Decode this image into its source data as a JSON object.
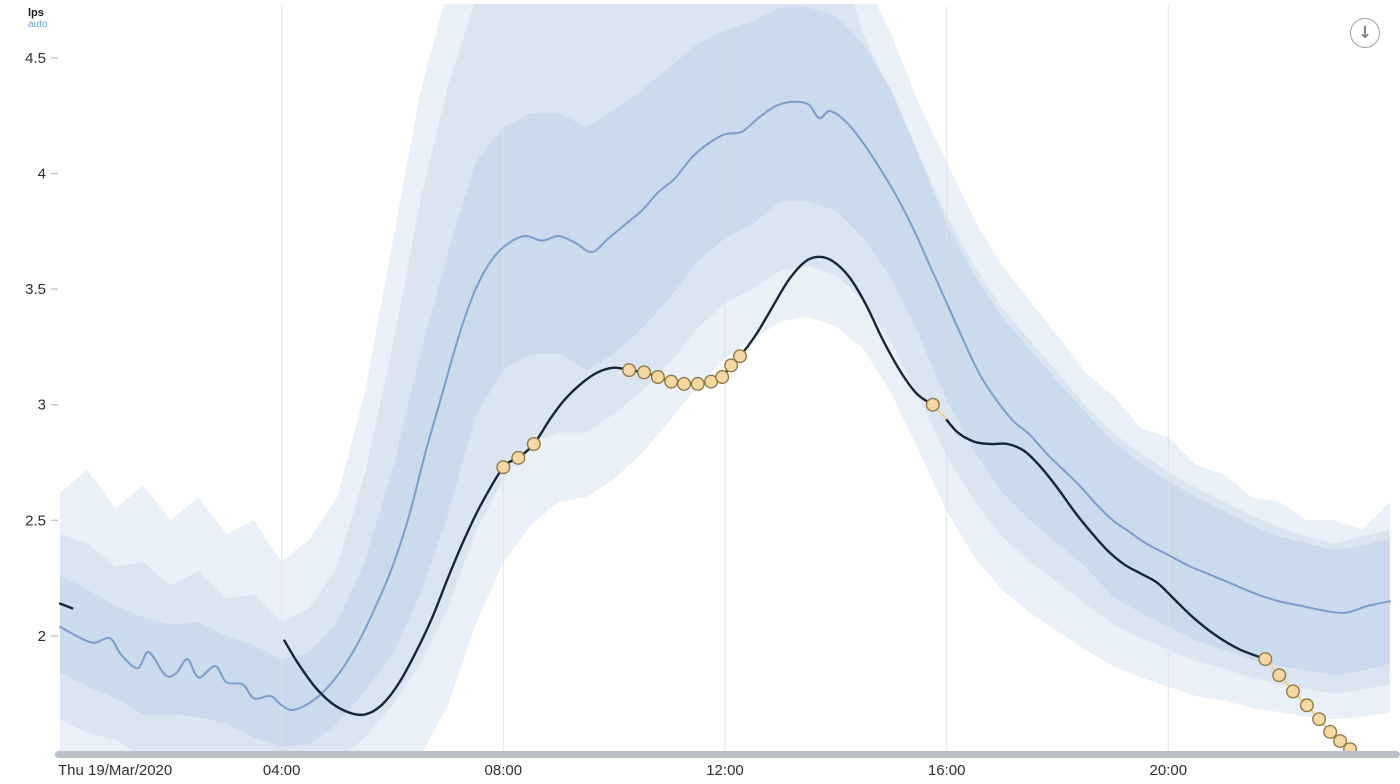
{
  "header": {
    "unit_label": "lps",
    "axis_mode": "auto"
  },
  "toolbar": {
    "download_icon": "arrow-down-circle",
    "download_glyph": "↓"
  },
  "colors": {
    "background": "#ffffff",
    "band_outer": "#eaf0f8",
    "band_mid": "#dbe5f1",
    "band_inner": "#cbdaec",
    "expected_line": "#7d9dca",
    "actual_line": "#16263a",
    "anomaly_fill": "#f6d9a2",
    "anomaly_stroke": "#8f7a45",
    "anomaly_connector": "#e9d6a0",
    "gridline": "#dde1e7",
    "axis_text": "#2b2f33",
    "tick_mark": "#c3c7cc",
    "scrollbar": "#b9c0c8"
  },
  "chart_data": {
    "type": "line",
    "title": "",
    "xlabel": "",
    "ylabel": "lps",
    "grid": "vertical-only",
    "legend": "none",
    "x_axis": {
      "domain": [
        0,
        24
      ],
      "ticks": [
        {
          "h": 0,
          "label": "Thu 19/Mar/2020",
          "align": "start",
          "grid": false
        },
        {
          "h": 4,
          "label": "04:00",
          "align": "middle",
          "grid": true
        },
        {
          "h": 8,
          "label": "08:00",
          "align": "middle",
          "grid": true
        },
        {
          "h": 12,
          "label": "12:00",
          "align": "middle",
          "grid": true
        },
        {
          "h": 16,
          "label": "16:00",
          "align": "middle",
          "grid": true
        },
        {
          "h": 20,
          "label": "20:00",
          "align": "middle",
          "grid": true
        }
      ]
    },
    "y_axis": {
      "unit": "lps",
      "mode": "auto",
      "domain": [
        1.485,
        4.716
      ],
      "ticks": [
        {
          "v": 4.5,
          "label": "4.5"
        },
        {
          "v": 4,
          "label": "4"
        },
        {
          "v": 3.5,
          "label": "3.5"
        },
        {
          "v": 3,
          "label": "3"
        },
        {
          "v": 2.5,
          "label": "2.5"
        },
        {
          "v": 2,
          "label": "2"
        }
      ]
    },
    "bands": {
      "x_start": 0,
      "x_step": 0.5,
      "layers": [
        {
          "name": "confidence-band-outer",
          "color": "#eaf0f8",
          "upper": [
            2.62,
            2.72,
            2.55,
            2.65,
            2.5,
            2.6,
            2.44,
            2.5,
            2.32,
            2.42,
            2.6,
            3.05,
            3.7,
            4.35,
            4.8,
            5.0,
            5.0,
            5.0,
            5.0,
            5.0,
            5.0,
            5.0,
            5.0,
            5.0,
            5.0,
            5.0,
            5.0,
            5.0,
            5.0,
            4.85,
            4.6,
            4.3,
            4.05,
            3.8,
            3.6,
            3.45,
            3.3,
            3.14,
            3.04,
            2.9,
            2.86,
            2.74,
            2.7,
            2.6,
            2.58,
            2.5,
            2.5,
            2.46,
            2.58
          ],
          "lower": [
            1.44,
            1.36,
            1.42,
            1.33,
            1.4,
            1.34,
            1.36,
            1.3,
            1.33,
            1.3,
            1.33,
            1.36,
            1.4,
            1.48,
            1.7,
            2.05,
            2.32,
            2.48,
            2.58,
            2.6,
            2.68,
            2.79,
            2.93,
            3.08,
            3.2,
            3.28,
            3.36,
            3.38,
            3.34,
            3.24,
            3.05,
            2.8,
            2.54,
            2.34,
            2.2,
            2.1,
            2.02,
            1.94,
            1.87,
            1.82,
            1.78,
            1.74,
            1.72,
            1.69,
            1.67,
            1.65,
            1.64,
            1.65,
            1.67
          ]
        },
        {
          "name": "confidence-band-mid",
          "color": "#dbe5f1",
          "upper": [
            2.44,
            2.4,
            2.3,
            2.32,
            2.22,
            2.28,
            2.16,
            2.18,
            2.06,
            2.12,
            2.3,
            2.7,
            3.25,
            3.88,
            4.38,
            4.75,
            4.9,
            4.95,
            4.95,
            4.9,
            4.95,
            5.0,
            5.0,
            5.0,
            5.0,
            5.0,
            5.0,
            5.0,
            5.0,
            4.6,
            4.35,
            4.08,
            3.82,
            3.6,
            3.42,
            3.28,
            3.14,
            3.0,
            2.88,
            2.79,
            2.71,
            2.64,
            2.58,
            2.52,
            2.47,
            2.43,
            2.4,
            2.43,
            2.46
          ],
          "lower": [
            1.64,
            1.58,
            1.55,
            1.48,
            1.5,
            1.46,
            1.46,
            1.4,
            1.4,
            1.39,
            1.46,
            1.56,
            1.7,
            1.88,
            2.12,
            2.45,
            2.68,
            2.83,
            2.88,
            2.88,
            2.96,
            3.06,
            3.18,
            3.33,
            3.44,
            3.5,
            3.58,
            3.6,
            3.56,
            3.45,
            3.27,
            3.03,
            2.78,
            2.58,
            2.43,
            2.32,
            2.23,
            2.14,
            2.05,
            1.99,
            1.94,
            1.89,
            1.86,
            1.82,
            1.79,
            1.77,
            1.75,
            1.77,
            1.79
          ]
        },
        {
          "name": "confidence-band-inner",
          "color": "#cbdaec",
          "upper": [
            2.26,
            2.2,
            2.13,
            2.08,
            2.05,
            2.06,
            2.0,
            1.96,
            1.9,
            1.93,
            2.06,
            2.32,
            2.72,
            3.22,
            3.66,
            4.05,
            4.2,
            4.26,
            4.26,
            4.2,
            4.28,
            4.36,
            4.46,
            4.56,
            4.62,
            4.66,
            4.72,
            4.72,
            4.68,
            4.56,
            4.36,
            4.08,
            3.78,
            3.56,
            3.38,
            3.24,
            3.1,
            2.97,
            2.84,
            2.75,
            2.67,
            2.6,
            2.54,
            2.48,
            2.43,
            2.4,
            2.37,
            2.39,
            2.42
          ],
          "lower": [
            1.84,
            1.78,
            1.73,
            1.66,
            1.66,
            1.65,
            1.62,
            1.56,
            1.52,
            1.53,
            1.62,
            1.76,
            1.92,
            2.18,
            2.52,
            2.95,
            3.15,
            3.22,
            3.22,
            3.15,
            3.22,
            3.33,
            3.46,
            3.62,
            3.72,
            3.78,
            3.88,
            3.88,
            3.84,
            3.72,
            3.55,
            3.3,
            3.02,
            2.8,
            2.62,
            2.5,
            2.4,
            2.3,
            2.17,
            2.1,
            2.04,
            1.98,
            1.94,
            1.9,
            1.87,
            1.85,
            1.83,
            1.85,
            1.88
          ]
        }
      ]
    },
    "series": [
      {
        "name": "expected",
        "type": "line",
        "color": "#7d9dca",
        "points": [
          [
            0,
            2.04
          ],
          [
            0.3,
            2.0
          ],
          [
            0.6,
            1.97
          ],
          [
            0.9,
            1.99
          ],
          [
            1.1,
            1.92
          ],
          [
            1.4,
            1.86
          ],
          [
            1.6,
            1.93
          ],
          [
            1.9,
            1.83
          ],
          [
            2.1,
            1.84
          ],
          [
            2.3,
            1.9
          ],
          [
            2.5,
            1.82
          ],
          [
            2.8,
            1.87
          ],
          [
            3.0,
            1.8
          ],
          [
            3.3,
            1.79
          ],
          [
            3.5,
            1.73
          ],
          [
            3.8,
            1.74
          ],
          [
            4.0,
            1.7
          ],
          [
            4.2,
            1.68
          ],
          [
            4.5,
            1.71
          ],
          [
            4.8,
            1.77
          ],
          [
            5.1,
            1.86
          ],
          [
            5.4,
            1.98
          ],
          [
            5.7,
            2.13
          ],
          [
            6.0,
            2.3
          ],
          [
            6.3,
            2.52
          ],
          [
            6.6,
            2.8
          ],
          [
            6.9,
            3.05
          ],
          [
            7.2,
            3.3
          ],
          [
            7.5,
            3.5
          ],
          [
            7.8,
            3.63
          ],
          [
            8.1,
            3.7
          ],
          [
            8.4,
            3.73
          ],
          [
            8.7,
            3.71
          ],
          [
            9.0,
            3.73
          ],
          [
            9.3,
            3.7
          ],
          [
            9.6,
            3.66
          ],
          [
            9.9,
            3.72
          ],
          [
            10.2,
            3.78
          ],
          [
            10.5,
            3.84
          ],
          [
            10.8,
            3.92
          ],
          [
            11.1,
            3.98
          ],
          [
            11.4,
            4.07
          ],
          [
            11.7,
            4.13
          ],
          [
            12.0,
            4.17
          ],
          [
            12.3,
            4.18
          ],
          [
            12.6,
            4.24
          ],
          [
            12.9,
            4.29
          ],
          [
            13.2,
            4.31
          ],
          [
            13.5,
            4.3
          ],
          [
            13.7,
            4.24
          ],
          [
            13.9,
            4.27
          ],
          [
            14.2,
            4.22
          ],
          [
            14.5,
            4.13
          ],
          [
            14.8,
            4.02
          ],
          [
            15.1,
            3.9
          ],
          [
            15.4,
            3.76
          ],
          [
            15.7,
            3.6
          ],
          [
            16.0,
            3.44
          ],
          [
            16.3,
            3.28
          ],
          [
            16.6,
            3.13
          ],
          [
            16.9,
            3.02
          ],
          [
            17.2,
            2.93
          ],
          [
            17.5,
            2.87
          ],
          [
            17.8,
            2.79
          ],
          [
            18.1,
            2.72
          ],
          [
            18.4,
            2.65
          ],
          [
            18.7,
            2.57
          ],
          [
            19.0,
            2.5
          ],
          [
            19.3,
            2.45
          ],
          [
            19.6,
            2.4
          ],
          [
            20.0,
            2.35
          ],
          [
            20.4,
            2.3
          ],
          [
            20.8,
            2.26
          ],
          [
            21.2,
            2.22
          ],
          [
            21.6,
            2.18
          ],
          [
            22.0,
            2.15
          ],
          [
            22.4,
            2.13
          ],
          [
            22.8,
            2.11
          ],
          [
            23.2,
            2.1
          ],
          [
            23.6,
            2.13
          ],
          [
            24.0,
            2.15
          ]
        ]
      },
      {
        "name": "actual",
        "type": "line",
        "color": "#16263a",
        "segments": [
          [
            [
              0,
              2.14
            ],
            [
              0.22,
              2.12
            ]
          ],
          [
            [
              4.05,
              1.98
            ],
            [
              4.3,
              1.88
            ],
            [
              4.6,
              1.78
            ],
            [
              4.9,
              1.71
            ],
            [
              5.2,
              1.67
            ],
            [
              5.5,
              1.66
            ],
            [
              5.8,
              1.7
            ],
            [
              6.1,
              1.79
            ],
            [
              6.4,
              1.92
            ],
            [
              6.7,
              2.07
            ],
            [
              7.0,
              2.25
            ],
            [
              7.3,
              2.42
            ],
            [
              7.6,
              2.57
            ],
            [
              8.0,
              2.73
            ],
            [
              8.27,
              2.77
            ],
            [
              8.55,
              2.83
            ],
            [
              8.85,
              2.94
            ],
            [
              9.1,
              3.02
            ],
            [
              9.4,
              3.09
            ],
            [
              9.7,
              3.14
            ],
            [
              10.0,
              3.16
            ],
            [
              10.27,
              3.15
            ],
            [
              10.54,
              3.14
            ],
            [
              10.79,
              3.12
            ],
            [
              11.03,
              3.1
            ],
            [
              11.26,
              3.09
            ],
            [
              11.51,
              3.09
            ],
            [
              11.75,
              3.1
            ],
            [
              11.95,
              3.12
            ],
            [
              12.11,
              3.17
            ],
            [
              12.27,
              3.21
            ],
            [
              12.55,
              3.3
            ],
            [
              12.85,
              3.42
            ],
            [
              13.15,
              3.54
            ],
            [
              13.45,
              3.62
            ],
            [
              13.7,
              3.64
            ],
            [
              13.95,
              3.62
            ],
            [
              14.25,
              3.55
            ],
            [
              14.55,
              3.43
            ],
            [
              14.85,
              3.28
            ],
            [
              15.15,
              3.15
            ],
            [
              15.45,
              3.05
            ],
            [
              15.75,
              3.0
            ]
          ],
          [
            [
              15.98,
              2.94
            ],
            [
              16.2,
              2.88
            ],
            [
              16.5,
              2.84
            ],
            [
              16.8,
              2.83
            ],
            [
              17.1,
              2.83
            ],
            [
              17.4,
              2.8
            ],
            [
              17.7,
              2.73
            ],
            [
              18.0,
              2.64
            ],
            [
              18.3,
              2.54
            ],
            [
              18.6,
              2.45
            ],
            [
              18.9,
              2.37
            ],
            [
              19.2,
              2.31
            ],
            [
              19.5,
              2.27
            ],
            [
              19.8,
              2.23
            ],
            [
              20.1,
              2.16
            ],
            [
              20.4,
              2.09
            ],
            [
              20.7,
              2.03
            ],
            [
              21.0,
              1.98
            ],
            [
              21.3,
              1.94
            ],
            [
              21.75,
              1.9
            ]
          ]
        ]
      }
    ],
    "anomalies": {
      "fill": "#f6d9a2",
      "stroke": "#8f7a45",
      "connector_color": "#e9d6a0",
      "points": [
        [
          8.0,
          2.73
        ],
        [
          8.27,
          2.77
        ],
        [
          8.55,
          2.83
        ],
        [
          10.27,
          3.15
        ],
        [
          10.54,
          3.14
        ],
        [
          10.79,
          3.12
        ],
        [
          11.03,
          3.1
        ],
        [
          11.26,
          3.09
        ],
        [
          11.51,
          3.09
        ],
        [
          11.75,
          3.1
        ],
        [
          11.95,
          3.12
        ],
        [
          12.11,
          3.17
        ],
        [
          12.27,
          3.21
        ],
        [
          15.75,
          3.0
        ],
        [
          21.75,
          1.9
        ],
        [
          22.0,
          1.83
        ],
        [
          22.25,
          1.76
        ],
        [
          22.5,
          1.7
        ],
        [
          22.72,
          1.64
        ],
        [
          22.92,
          1.585
        ],
        [
          23.1,
          1.545
        ],
        [
          23.28,
          1.51
        ]
      ],
      "connectors": [
        [
          [
            15.75,
            3.0
          ],
          [
            15.98,
            2.94
          ]
        ],
        [
          [
            21.75,
            1.9
          ],
          [
            22.0,
            1.83
          ],
          [
            22.25,
            1.76
          ],
          [
            22.5,
            1.7
          ],
          [
            22.72,
            1.64
          ],
          [
            22.92,
            1.585
          ],
          [
            23.1,
            1.545
          ],
          [
            23.28,
            1.51
          ]
        ]
      ]
    }
  }
}
